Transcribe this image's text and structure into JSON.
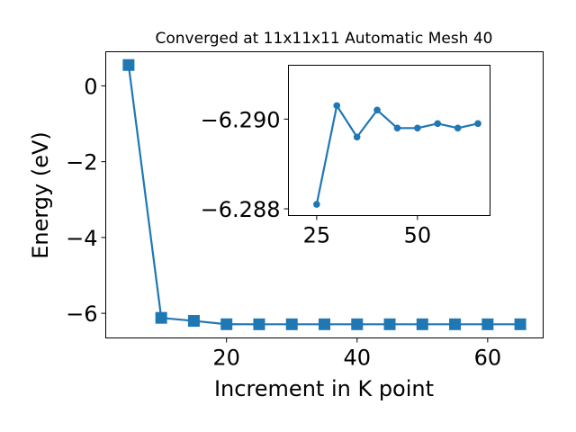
{
  "chart_data": [
    {
      "type": "line",
      "title": "Converged at 11x11x11 Automatic Mesh 40",
      "xlabel": "Increment in K point",
      "ylabel": "Energy (eV)",
      "xlim": [
        1.5,
        68.5
      ],
      "ylim": [
        -6.65,
        0.9
      ],
      "xticks": [
        20,
        40,
        60
      ],
      "yticks": [
        0,
        -2,
        -4,
        -6
      ],
      "ytick_labels": [
        "0",
        "−2",
        "−4",
        "−6"
      ],
      "marker": "square",
      "color": "#1f77b4",
      "series": [
        {
          "x": [
            5,
            10,
            15,
            20,
            25,
            30,
            35,
            40,
            45,
            50,
            55,
            60,
            65
          ],
          "y": [
            0.55,
            -6.12,
            -6.2,
            -6.2881,
            -6.2897,
            -6.2892,
            -6.2891,
            -6.2891,
            -6.2891,
            -6.2891,
            -6.2891,
            -6.2891,
            -6.2891
          ]
        }
      ]
    },
    {
      "type": "line",
      "title": "",
      "xlabel": "",
      "ylabel": "",
      "xlim": [
        18,
        68
      ],
      "ylim": [
        -6.28785,
        -6.2912
      ],
      "xticks": [
        25,
        50
      ],
      "yticks": [
        -6.29,
        -6.288
      ],
      "ytick_labels": [
        "−6.290",
        "−6.288"
      ],
      "marker": "circle",
      "color": "#1f77b4",
      "series": [
        {
          "x": [
            25,
            30,
            35,
            40,
            45,
            50,
            55,
            60,
            65
          ],
          "y": [
            -6.2881,
            -6.2903,
            -6.2896,
            -6.2902,
            -6.2898,
            -6.2898,
            -6.2899,
            -6.2898,
            -6.2899
          ]
        }
      ]
    }
  ]
}
